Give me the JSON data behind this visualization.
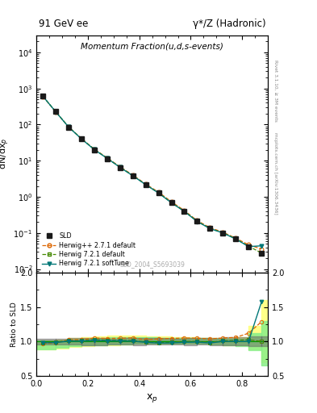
{
  "title_top_left": "91 GeV ee",
  "title_top_right": "γ*/Z (Hadronic)",
  "plot_title": "Momentum Fraction(u,d,s-events)",
  "ylabel_main": "dN/dx$_p$",
  "ylabel_ratio": "Ratio to SLD",
  "xlabel": "x$_p$",
  "watermark": "SLD_2004_S5693039",
  "right_label": "Rivet 3.1.10, ≥ 3M events",
  "right_label2": "mcplots.cern.ch [arXiv:1306.3436]",
  "xp": [
    0.025,
    0.075,
    0.125,
    0.175,
    0.225,
    0.275,
    0.325,
    0.375,
    0.425,
    0.475,
    0.525,
    0.575,
    0.625,
    0.675,
    0.725,
    0.775,
    0.825,
    0.875
  ],
  "sld_y": [
    620,
    230,
    85,
    40,
    20,
    11.5,
    6.5,
    3.8,
    2.2,
    1.3,
    0.7,
    0.4,
    0.21,
    0.135,
    0.1,
    0.068,
    0.042,
    0.028
  ],
  "sld_yerr": [
    25,
    10,
    4,
    2,
    1,
    0.5,
    0.3,
    0.2,
    0.1,
    0.06,
    0.03,
    0.02,
    0.01,
    0.007,
    0.006,
    0.004,
    0.003,
    0.002
  ],
  "herwig_pp_y": [
    600,
    225,
    87,
    41,
    21,
    12.0,
    6.8,
    4.0,
    2.25,
    1.35,
    0.73,
    0.42,
    0.22,
    0.14,
    0.105,
    0.072,
    0.047,
    0.036
  ],
  "herwig72_def_y": [
    610,
    228,
    86,
    40.5,
    20.5,
    11.7,
    6.6,
    3.85,
    2.18,
    1.28,
    0.69,
    0.4,
    0.21,
    0.133,
    0.101,
    0.069,
    0.043,
    0.028
  ],
  "herwig72_soft_y": [
    608,
    226,
    85.5,
    40.2,
    20.3,
    11.6,
    6.55,
    3.82,
    2.17,
    1.27,
    0.685,
    0.395,
    0.208,
    0.132,
    0.1,
    0.068,
    0.042,
    0.044
  ],
  "herwig_pp_band_lo": [
    0.88,
    0.9,
    0.92,
    0.93,
    0.94,
    0.95,
    0.96,
    0.97,
    0.97,
    0.97,
    0.97,
    0.97,
    0.97,
    0.96,
    0.95,
    0.94,
    0.88,
    0.7
  ],
  "herwig_pp_band_hi": [
    1.02,
    1.03,
    1.05,
    1.06,
    1.07,
    1.08,
    1.08,
    1.08,
    1.07,
    1.07,
    1.06,
    1.06,
    1.05,
    1.05,
    1.05,
    1.06,
    1.22,
    1.6
  ],
  "herwig72_def_band_lo": [
    0.89,
    0.91,
    0.93,
    0.94,
    0.95,
    0.96,
    0.96,
    0.97,
    0.97,
    0.97,
    0.97,
    0.97,
    0.97,
    0.96,
    0.95,
    0.93,
    0.87,
    0.65
  ],
  "herwig72_def_band_hi": [
    1.01,
    1.02,
    1.03,
    1.04,
    1.05,
    1.06,
    1.06,
    1.06,
    1.06,
    1.05,
    1.05,
    1.05,
    1.05,
    1.04,
    1.04,
    1.04,
    1.12,
    1.3
  ],
  "color_sld": "#1a1a1a",
  "color_herwig_pp": "#dd6600",
  "color_herwig72_def": "#448800",
  "color_herwig72_soft": "#007777",
  "band_herwig_pp_color": "#ffff88",
  "band_herwig72_def_color": "#88ee88",
  "xlim": [
    0.0,
    0.9
  ],
  "ylim_main_log": [
    0.008,
    30000
  ],
  "ylim_ratio": [
    0.5,
    2.0
  ]
}
